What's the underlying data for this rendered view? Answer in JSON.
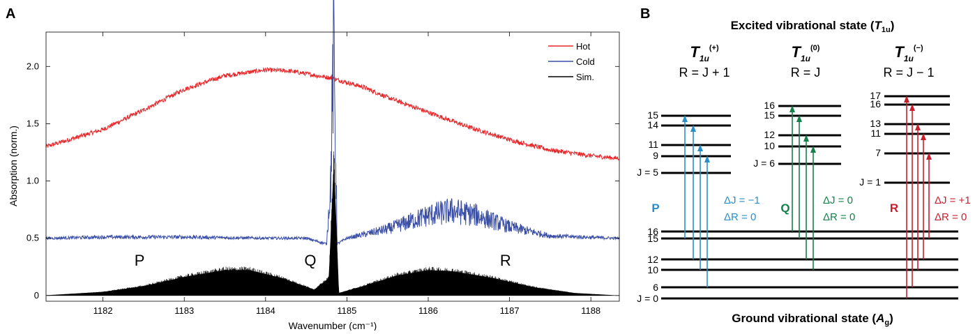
{
  "panel_labels": {
    "a": "A",
    "b": "B"
  },
  "chart_data": {
    "type": "line",
    "xlabel": "Wavenumber (cm⁻¹)",
    "ylabel": "Absorption (norm.)",
    "xlim": [
      1181.3,
      1188.35
    ],
    "ylim": [
      -0.05,
      2.3
    ],
    "x_ticks": [
      1182,
      1183,
      1184,
      1185,
      1186,
      1187,
      1188
    ],
    "y_ticks": [
      {
        "value": 0,
        "label": "0"
      },
      {
        "value": 0.5,
        "label": "0.5"
      },
      {
        "value": 1.0,
        "label": "1.0"
      },
      {
        "value": 1.5,
        "label": "1.5"
      },
      {
        "value": 2.0,
        "label": "2.0"
      }
    ],
    "legend_position": "top-right",
    "series": [
      {
        "name": "Hot",
        "color": "#e8272a",
        "x": [
          1181.3,
          1182.0,
          1182.5,
          1183.0,
          1183.5,
          1184.0,
          1184.3,
          1184.8,
          1185.2,
          1185.5,
          1186.0,
          1186.5,
          1187.0,
          1187.5,
          1188.0,
          1188.3
        ],
        "y": [
          1.3,
          1.45,
          1.62,
          1.8,
          1.92,
          1.97,
          1.96,
          1.9,
          1.82,
          1.73,
          1.6,
          1.47,
          1.36,
          1.27,
          1.22,
          1.2
        ]
      },
      {
        "name": "Cold",
        "color": "#3a4ea5",
        "x": [
          1181.3,
          1182.0,
          1183.0,
          1184.0,
          1184.5,
          1184.75,
          1184.8,
          1184.84,
          1184.88,
          1185.0,
          1185.5,
          1186.0,
          1186.3,
          1186.6,
          1187.0,
          1187.5,
          1188.3
        ],
        "y": [
          0.5,
          0.51,
          0.51,
          0.5,
          0.5,
          0.45,
          1.0,
          2.28,
          0.45,
          0.5,
          0.58,
          0.7,
          0.74,
          0.7,
          0.6,
          0.52,
          0.5
        ]
      },
      {
        "name": "Sim.",
        "color": "#000000",
        "x": [
          1181.3,
          1182.0,
          1182.5,
          1183.0,
          1183.5,
          1183.8,
          1184.2,
          1184.6,
          1184.78,
          1184.84,
          1184.9,
          1185.2,
          1185.6,
          1186.0,
          1186.3,
          1186.8,
          1187.3,
          1187.8,
          1188.3
        ],
        "y": [
          0.0,
          0.03,
          0.08,
          0.16,
          0.22,
          0.22,
          0.15,
          0.05,
          0.15,
          1.15,
          0.02,
          0.08,
          0.17,
          0.22,
          0.21,
          0.15,
          0.07,
          0.02,
          0.0
        ]
      }
    ],
    "annotations": [
      {
        "text": "P",
        "x": 1182.45,
        "y": 0.26
      },
      {
        "text": "Q",
        "x": 1184.55,
        "y": 0.26
      },
      {
        "text": "R",
        "x": 1186.95,
        "y": 0.26
      }
    ]
  },
  "diagram": {
    "excited_title": "Excited vibrational state (",
    "excited_sym": "T",
    "excited_sub": "1u",
    "excited_close": ")",
    "ground_title": "Ground vibrational state (",
    "ground_sym": "A",
    "ground_sub": "g",
    "ground_close": ")",
    "columns": [
      {
        "sym": "T",
        "sub": "1u",
        "sup": "(+)",
        "rel": "R = J + 1",
        "branch": "P",
        "delta_j": "ΔJ = −1",
        "delta_r": "ΔR = 0",
        "color": "#2a8fc9",
        "levels": [
          "15",
          "14",
          "11",
          "9",
          "J = 5"
        ]
      },
      {
        "sym": "T",
        "sub": "1u",
        "sup": "(0)",
        "rel": "R = J",
        "branch": "Q",
        "delta_j": "ΔJ = 0",
        "delta_r": "ΔR = 0",
        "color": "#14804a",
        "levels": [
          "16",
          "15",
          "12",
          "10",
          "J = 6"
        ]
      },
      {
        "sym": "T",
        "sub": "1u",
        "sup": "(−)",
        "rel": "R = J − 1",
        "branch": "R",
        "delta_j": "ΔJ = +1",
        "delta_r": "ΔR = 0",
        "color": "#c8202f",
        "levels": [
          "17",
          "16",
          "13",
          "11",
          "7",
          "J = 1"
        ]
      }
    ],
    "ground_levels": [
      "16",
      "15",
      "12",
      "10",
      "6",
      "J = 0"
    ]
  }
}
